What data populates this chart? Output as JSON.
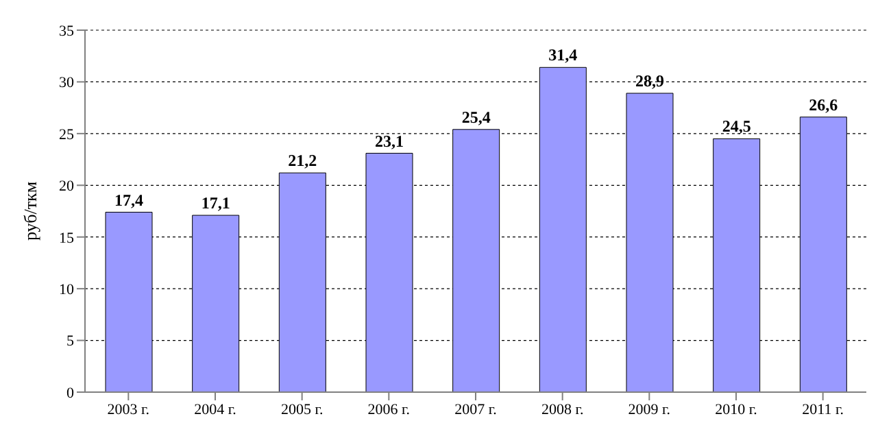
{
  "chart_data": {
    "type": "bar",
    "ylabel": "руб/ткм",
    "categories": [
      "2003 г.",
      "2004 г.",
      "2005 г.",
      "2006 г.",
      "2007 г.",
      "2008 г.",
      "2009 г.",
      "2010 г.",
      "2011 г."
    ],
    "values": [
      17.4,
      17.1,
      21.2,
      23.1,
      25.4,
      31.4,
      28.9,
      24.5,
      26.6
    ],
    "value_labels": [
      "17,4",
      "17,1",
      "21,2",
      "23,1",
      "25,4",
      "31,4",
      "28,9",
      "24,5",
      "26,6"
    ],
    "color": "#9999ff",
    "ylim": [
      0,
      35
    ],
    "yticks": [
      0,
      5,
      10,
      15,
      20,
      25,
      30,
      35
    ],
    "grid": "y"
  }
}
